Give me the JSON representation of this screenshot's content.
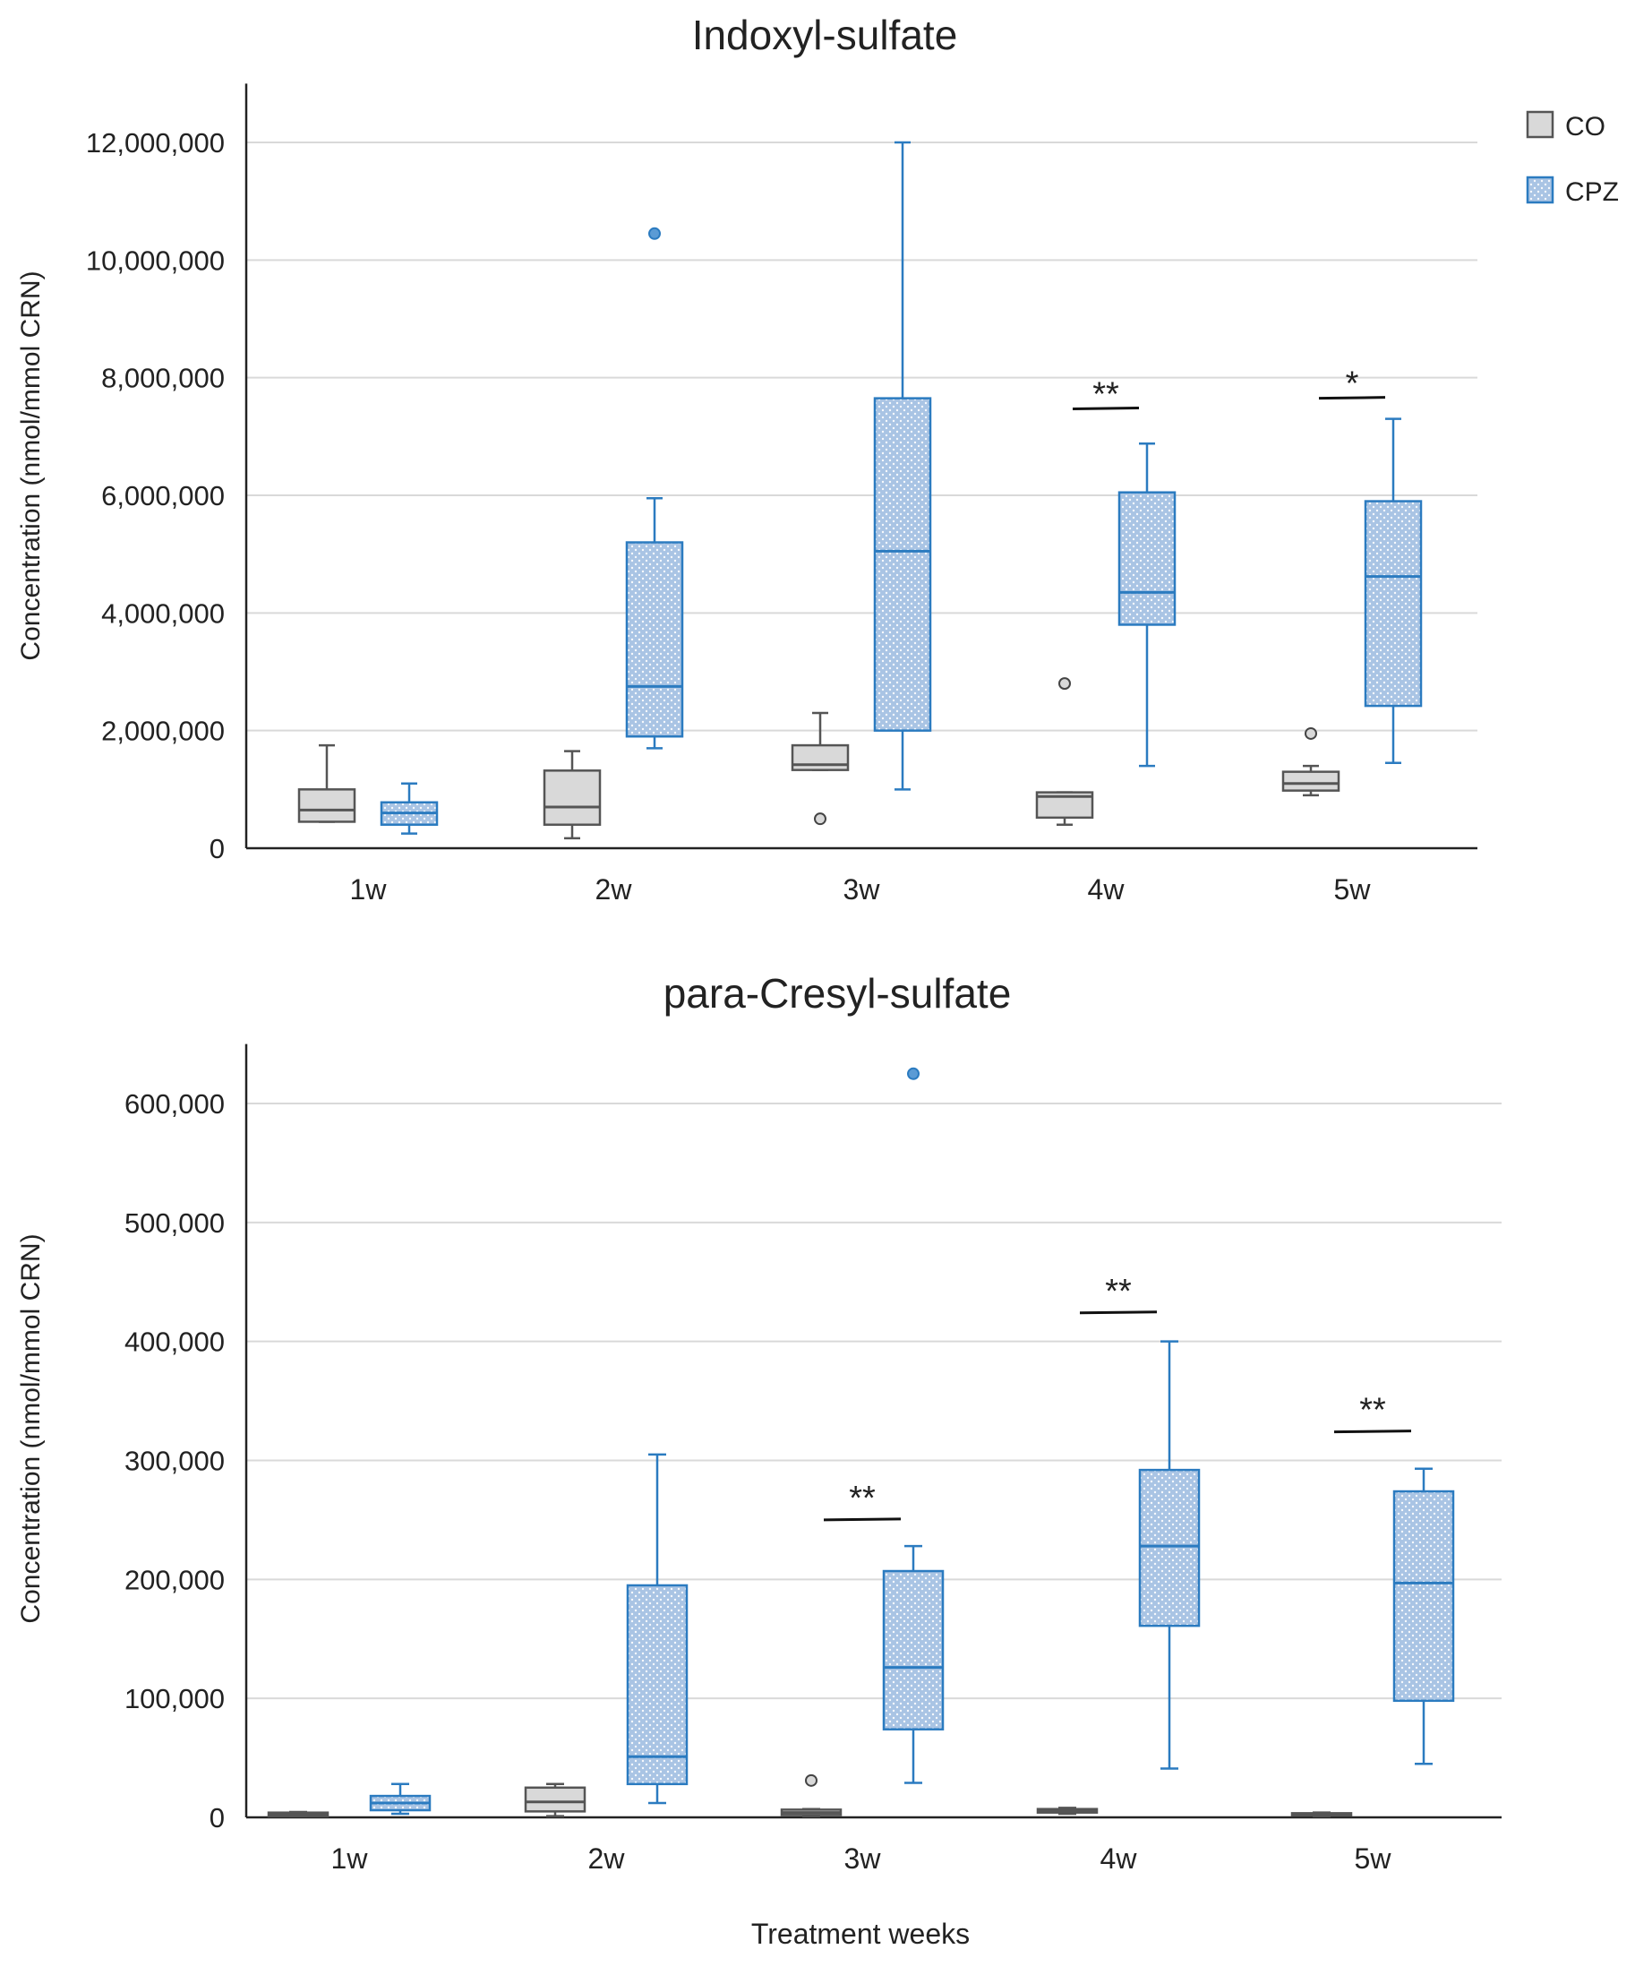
{
  "figure": {
    "xlabel": "Treatment weeks"
  },
  "legend": [
    {
      "name": "CO",
      "color": "#555555",
      "fill": "#d9d9d9"
    },
    {
      "name": "CPZ",
      "color": "#2b7bc0",
      "fill": "#a9c4e4"
    }
  ],
  "chart_data": [
    {
      "type": "box",
      "title": "Indoxyl-sulfate",
      "ylabel": "Concentration (nmol/mmol CRN)",
      "xlabel": "",
      "ylim": [
        0,
        13000000
      ],
      "yticks": [
        0,
        2000000,
        4000000,
        6000000,
        8000000,
        10000000,
        12000000
      ],
      "ytick_labels": [
        "0",
        "2,000,000",
        "4,000,000",
        "6,000,000",
        "8,000,000",
        "10,000,000",
        "12,000,000"
      ],
      "categories": [
        "1w",
        "2w",
        "3w",
        "4w",
        "5w"
      ],
      "series": [
        {
          "name": "CO",
          "boxes": [
            {
              "whislo": 450000,
              "q1": 450000,
              "med": 650000,
              "q3": 1000000,
              "whishi": 1750000,
              "fliers": []
            },
            {
              "whislo": 170000,
              "q1": 400000,
              "med": 700000,
              "q3": 1320000,
              "whishi": 1650000,
              "fliers": []
            },
            {
              "whislo": 1330000,
              "q1": 1330000,
              "med": 1420000,
              "q3": 1750000,
              "whishi": 2300000,
              "fliers": [
                500000
              ]
            },
            {
              "whislo": 400000,
              "q1": 520000,
              "med": 880000,
              "q3": 950000,
              "whishi": 950000,
              "fliers": [
                2800000
              ]
            },
            {
              "whislo": 900000,
              "q1": 980000,
              "med": 1100000,
              "q3": 1300000,
              "whishi": 1400000,
              "fliers": [
                1950000
              ]
            }
          ]
        },
        {
          "name": "CPZ",
          "boxes": [
            {
              "whislo": 250000,
              "q1": 400000,
              "med": 600000,
              "q3": 780000,
              "whishi": 1100000,
              "fliers": []
            },
            {
              "whislo": 1700000,
              "q1": 1900000,
              "med": 2750000,
              "q3": 5200000,
              "whishi": 5950000,
              "fliers": [
                10450000
              ]
            },
            {
              "whislo": 1000000,
              "q1": 2000000,
              "med": 5050000,
              "q3": 7650000,
              "whishi": 12000000,
              "fliers": []
            },
            {
              "whislo": 1400000,
              "q1": 3800000,
              "med": 4350000,
              "q3": 6050000,
              "whishi": 6880000,
              "fliers": []
            },
            {
              "whislo": 1450000,
              "q1": 2420000,
              "med": 4620000,
              "q3": 5900000,
              "whishi": 7300000,
              "fliers": []
            }
          ]
        }
      ],
      "significance": [
        {
          "category": "4w",
          "label": "**",
          "y": 7470000
        },
        {
          "category": "5w",
          "label": "*",
          "y": 7650000
        }
      ]
    },
    {
      "type": "box",
      "title": "para-Cresyl-sulfate",
      "ylabel": "Concentration (nmol/mmol CRN)",
      "xlabel": "Treatment weeks",
      "ylim": [
        0,
        650000
      ],
      "yticks": [
        0,
        100000,
        200000,
        300000,
        400000,
        500000,
        600000
      ],
      "ytick_labels": [
        "0",
        "100,000",
        "200,000",
        "300,000",
        "400,000",
        "500,000",
        "600,000"
      ],
      "categories": [
        "1w",
        "2w",
        "3w",
        "4w",
        "5w"
      ],
      "series": [
        {
          "name": "CO",
          "boxes": [
            {
              "whislo": 1000,
              "q1": 1000,
              "med": 2500,
              "q3": 4000,
              "whishi": 4500,
              "fliers": []
            },
            {
              "whislo": 1000,
              "q1": 5000,
              "med": 13000,
              "q3": 25000,
              "whishi": 28000,
              "fliers": []
            },
            {
              "whislo": 1000,
              "q1": 2000,
              "med": 4000,
              "q3": 6500,
              "whishi": 7000,
              "fliers": [
                31000
              ]
            },
            {
              "whislo": 3000,
              "q1": 4000,
              "med": 5500,
              "q3": 7000,
              "whishi": 8000,
              "fliers": []
            },
            {
              "whislo": 1000,
              "q1": 1500,
              "med": 2500,
              "q3": 3500,
              "whishi": 4000,
              "fliers": []
            }
          ]
        },
        {
          "name": "CPZ",
          "boxes": [
            {
              "whislo": 3000,
              "q1": 6000,
              "med": 12000,
              "q3": 18000,
              "whishi": 28000,
              "fliers": []
            },
            {
              "whislo": 12000,
              "q1": 28000,
              "med": 51000,
              "q3": 195000,
              "whishi": 305000,
              "fliers": []
            },
            {
              "whislo": 29000,
              "q1": 74000,
              "med": 126000,
              "q3": 207000,
              "whishi": 228000,
              "fliers": [
                625000
              ]
            },
            {
              "whislo": 41000,
              "q1": 161000,
              "med": 228000,
              "q3": 292000,
              "whishi": 400000,
              "fliers": []
            },
            {
              "whislo": 45000,
              "q1": 98000,
              "med": 197000,
              "q3": 274000,
              "whishi": 293000,
              "fliers": []
            }
          ]
        }
      ],
      "significance": [
        {
          "category": "3w",
          "label": "**",
          "y": 250000
        },
        {
          "category": "4w",
          "label": "**",
          "y": 424000
        },
        {
          "category": "5w",
          "label": "**",
          "y": 324000
        }
      ]
    }
  ]
}
